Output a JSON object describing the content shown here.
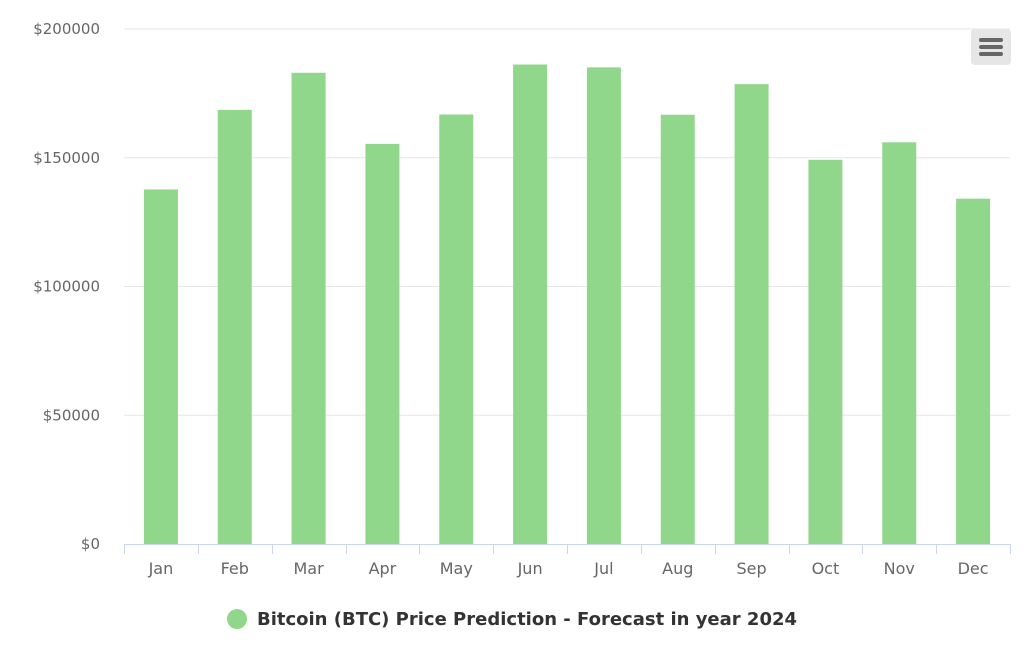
{
  "chart_data": {
    "type": "bar",
    "categories": [
      "Jan",
      "Feb",
      "Mar",
      "Apr",
      "May",
      "Jun",
      "Jul",
      "Aug",
      "Sep",
      "Oct",
      "Nov",
      "Dec"
    ],
    "series": [
      {
        "name": "Bitcoin (BTC) Price Prediction - Forecast in year 2024",
        "values": [
          137700,
          168600,
          183000,
          155400,
          166800,
          186200,
          185100,
          166700,
          178600,
          149200,
          156000,
          134100
        ]
      }
    ],
    "y_tick_labels": [
      "$0",
      "$50000",
      "$100000",
      "$150000",
      "$200000"
    ],
    "y_ticks": [
      0,
      50000,
      100000,
      150000,
      200000
    ],
    "ylim": [
      0,
      200000
    ],
    "title": "",
    "xlabel": "",
    "ylabel": "",
    "grid": true,
    "legend_position": "bottom-center",
    "bar_color": "#90d78b"
  },
  "menu": {
    "icon": "hamburger-menu-icon"
  }
}
